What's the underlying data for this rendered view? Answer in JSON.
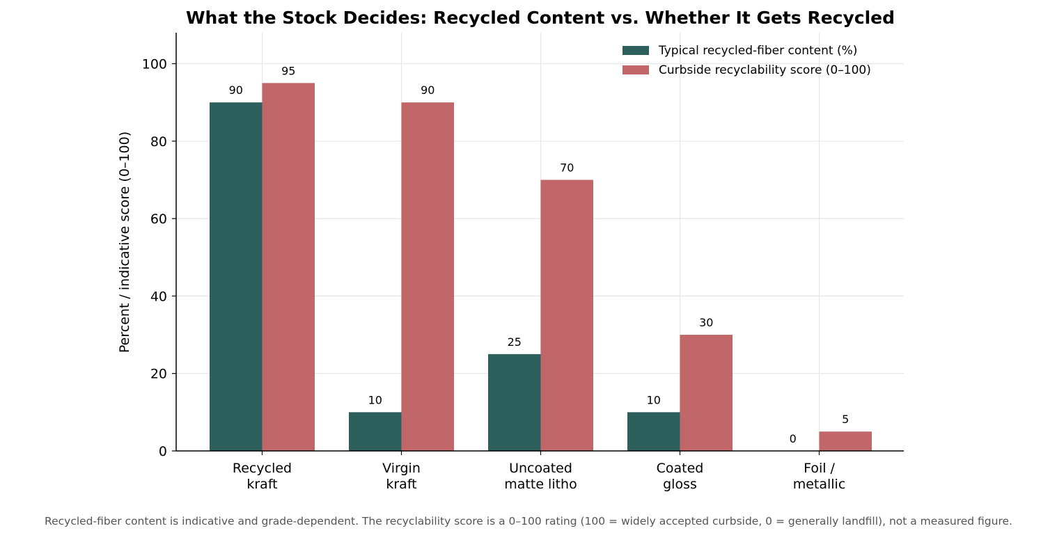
{
  "chart_data": {
    "type": "bar",
    "title": "What the Stock Decides: Recycled Content vs. Whether It Gets Recycled",
    "xlabel": "",
    "ylabel": "Percent / indicative score (0–100)",
    "ylim": [
      0,
      108
    ],
    "yticks": [
      0,
      20,
      40,
      60,
      80,
      100
    ],
    "grid": true,
    "legend_position": "top-right",
    "categories": [
      [
        "Recycled",
        "kraft"
      ],
      [
        "Virgin",
        "kraft"
      ],
      [
        "Uncoated",
        "matte litho"
      ],
      [
        "Coated",
        "gloss"
      ],
      [
        "Foil /",
        "metallic"
      ]
    ],
    "series": [
      {
        "name": "Typical recycled-fiber content (%)",
        "color": "#2d605c",
        "values": [
          90,
          10,
          25,
          10,
          0
        ]
      },
      {
        "name": "Curbside recyclability score (0–100)",
        "color": "#c1676a",
        "values": [
          95,
          90,
          70,
          30,
          5
        ]
      }
    ],
    "footnote": "Recycled-fiber content is indicative and grade-dependent. The recyclability score is a 0–100 rating (100 = widely accepted curbside, 0 = generally landfill), not a measured figure."
  }
}
